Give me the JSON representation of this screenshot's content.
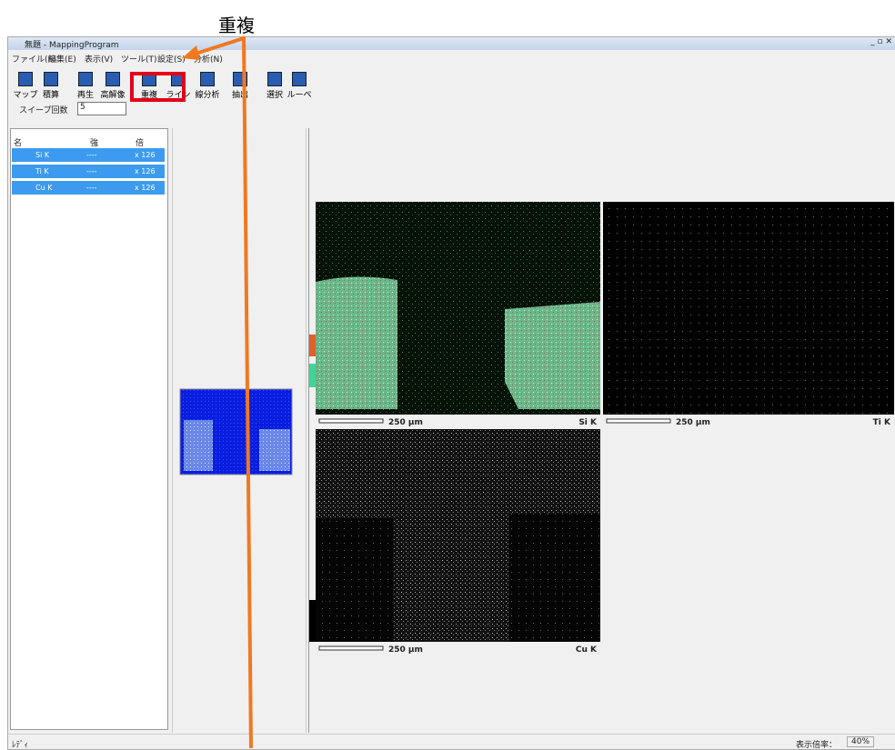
{
  "annotation": {
    "label": "重複"
  },
  "window": {
    "title": "無題 - MappingProgram",
    "menu": [
      "ファイル(F)",
      "編集(E)",
      "表示(V)",
      "ツール(T)",
      "設定(S)",
      "分析(N)"
    ],
    "toolbar": [
      "マップ",
      "積算",
      "再生",
      "高解像",
      "重複",
      "ライン",
      "線分析",
      "抽出",
      "選択",
      "ルーペ"
    ],
    "sweep": {
      "label": "スイープ回数",
      "value": "5"
    },
    "list": {
      "headers": [
        "名前",
        "強度",
        "倍率"
      ],
      "rows": [
        [
          "Si K",
          "----",
          "x 126"
        ],
        [
          "Ti K",
          "----",
          "x 126"
        ],
        [
          "Cu K",
          "----",
          "x 126"
        ]
      ]
    },
    "maps": [
      {
        "scale": "250 µm",
        "element": "Si K"
      },
      {
        "scale": "250 µm",
        "element": "Ti K"
      },
      {
        "scale": "250 µm",
        "element": "Cu K"
      }
    ],
    "status": {
      "text": "ﾚﾃﾞｨ",
      "zoom_label": "表示倍率：",
      "zoom": "40%"
    }
  }
}
